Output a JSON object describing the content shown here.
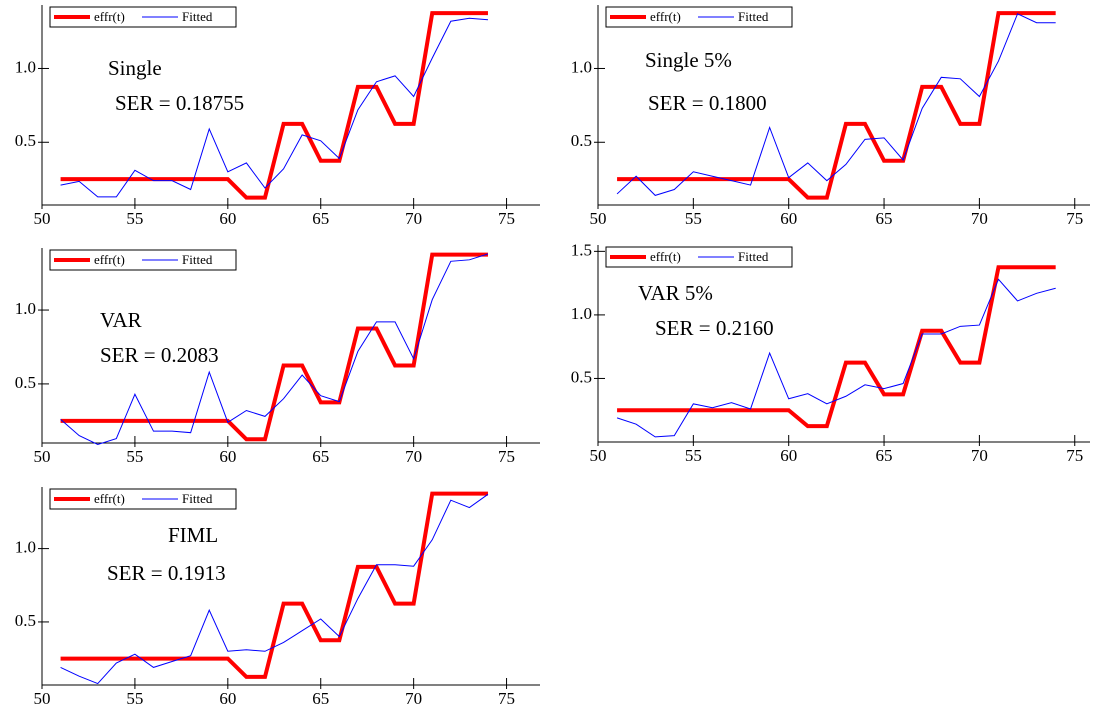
{
  "chart_data": [
    {
      "type": "line",
      "legend": "upper left",
      "annotations": [
        "Single",
        "SER = 0.18755"
      ],
      "x": [
        51,
        52,
        53,
        54,
        55,
        56,
        57,
        58,
        59,
        60,
        61,
        62,
        63,
        64,
        65,
        66,
        67,
        68,
        69,
        70,
        71,
        72,
        73,
        74
      ],
      "series": [
        {
          "name": "effr(t)",
          "color": "#ff0000",
          "values": [
            0.25,
            0.25,
            0.25,
            0.25,
            0.25,
            0.25,
            0.25,
            0.25,
            0.25,
            0.25,
            0.125,
            0.125,
            0.625,
            0.625,
            0.375,
            0.375,
            0.875,
            0.875,
            0.625,
            0.625,
            1.375,
            1.375,
            1.375,
            1.375
          ]
        },
        {
          "name": "Fitted",
          "color": "#0000ff",
          "values": [
            0.21,
            0.235,
            0.13,
            0.13,
            0.31,
            0.24,
            0.24,
            0.18,
            0.59,
            0.3,
            0.36,
            0.19,
            0.32,
            0.55,
            0.51,
            0.39,
            0.72,
            0.91,
            0.95,
            0.81,
            1.07,
            1.32,
            1.34,
            1.33
          ]
        }
      ],
      "xlim": [
        50,
        76.8
      ],
      "xticks": [
        50,
        55,
        60,
        65,
        70,
        75
      ],
      "ylim": [
        0.075,
        1.43
      ],
      "yticks": [
        0.5,
        {
          "value": 1,
          "label": "1.0"
        }
      ]
    },
    {
      "type": "line",
      "legend": "upper left",
      "annotations": [
        "Single 5%",
        "SER = 0.1800"
      ],
      "x": [
        51,
        52,
        53,
        54,
        55,
        56,
        57,
        58,
        59,
        60,
        61,
        62,
        63,
        64,
        65,
        66,
        67,
        68,
        69,
        70,
        71,
        72,
        73,
        74
      ],
      "series": [
        {
          "name": "effr(t)",
          "color": "#ff0000",
          "values": [
            0.25,
            0.25,
            0.25,
            0.25,
            0.25,
            0.25,
            0.25,
            0.25,
            0.25,
            0.25,
            0.125,
            0.125,
            0.625,
            0.625,
            0.375,
            0.375,
            0.875,
            0.875,
            0.625,
            0.625,
            1.375,
            1.375,
            1.375,
            1.375
          ]
        },
        {
          "name": "Fitted",
          "color": "#0000ff",
          "values": [
            0.15,
            0.27,
            0.14,
            0.18,
            0.3,
            0.27,
            0.24,
            0.21,
            0.6,
            0.26,
            0.36,
            0.24,
            0.35,
            0.52,
            0.53,
            0.38,
            0.73,
            0.94,
            0.93,
            0.81,
            1.05,
            1.37,
            1.31,
            1.31
          ]
        }
      ],
      "xlim": [
        50,
        75.8
      ],
      "xticks": [
        50,
        55,
        60,
        65,
        70,
        75
      ],
      "ylim": [
        0.075,
        1.43
      ],
      "yticks": [
        0.5,
        {
          "value": 1,
          "label": "1.0"
        }
      ]
    },
    {
      "type": "line",
      "legend": "upper left",
      "annotations": [
        "VAR",
        "SER = 0.2083"
      ],
      "x": [
        51,
        52,
        53,
        54,
        55,
        56,
        57,
        58,
        59,
        60,
        61,
        62,
        63,
        64,
        65,
        66,
        67,
        68,
        69,
        70,
        71,
        72,
        73,
        74
      ],
      "series": [
        {
          "name": "effr(t)",
          "color": "#ff0000",
          "values": [
            0.25,
            0.25,
            0.25,
            0.25,
            0.25,
            0.25,
            0.25,
            0.25,
            0.25,
            0.25,
            0.125,
            0.125,
            0.625,
            0.625,
            0.375,
            0.375,
            0.875,
            0.875,
            0.625,
            0.625,
            1.375,
            1.375,
            1.375,
            1.375
          ]
        },
        {
          "name": "Fitted",
          "color": "#0000ff",
          "values": [
            0.26,
            0.15,
            0.09,
            0.13,
            0.43,
            0.18,
            0.18,
            0.17,
            0.58,
            0.24,
            0.32,
            0.28,
            0.4,
            0.56,
            0.42,
            0.38,
            0.72,
            0.92,
            0.92,
            0.67,
            1.07,
            1.33,
            1.34,
            1.38
          ]
        }
      ],
      "xlim": [
        50,
        76.8
      ],
      "xticks": [
        50,
        55,
        60,
        65,
        70,
        75
      ],
      "ylim": [
        0.1,
        1.42
      ],
      "yticks": [
        0.5,
        {
          "value": 1,
          "label": "1.0"
        }
      ]
    },
    {
      "type": "line",
      "legend": "upper left",
      "annotations": [
        "VAR 5%",
        "SER = 0.2160"
      ],
      "x": [
        51,
        52,
        53,
        54,
        55,
        56,
        57,
        58,
        59,
        60,
        61,
        62,
        63,
        64,
        65,
        66,
        67,
        68,
        69,
        70,
        71,
        72,
        73,
        74
      ],
      "series": [
        {
          "name": "effr(t)",
          "color": "#ff0000",
          "values": [
            0.25,
            0.25,
            0.25,
            0.25,
            0.25,
            0.25,
            0.25,
            0.25,
            0.25,
            0.25,
            0.125,
            0.125,
            0.625,
            0.625,
            0.375,
            0.375,
            0.875,
            0.875,
            0.625,
            0.625,
            1.375,
            1.375,
            1.375,
            1.375
          ]
        },
        {
          "name": "Fitted",
          "color": "#0000ff",
          "values": [
            0.19,
            0.14,
            0.04,
            0.05,
            0.3,
            0.27,
            0.31,
            0.26,
            0.7,
            0.34,
            0.38,
            0.3,
            0.36,
            0.45,
            0.42,
            0.46,
            0.85,
            0.85,
            0.91,
            0.92,
            1.28,
            1.11,
            1.17,
            1.21
          ]
        }
      ],
      "xlim": [
        50,
        75.8
      ],
      "xticks": [
        50,
        55,
        60,
        65,
        70,
        75
      ],
      "ylim": [
        0,
        1.55
      ],
      "yticks": [
        0.5,
        {
          "value": 1,
          "label": "1.0"
        },
        1.5
      ]
    },
    {
      "type": "line",
      "legend": "upper left",
      "annotations": [
        "FIML",
        "SER = 0.1913"
      ],
      "x": [
        51,
        52,
        53,
        54,
        55,
        56,
        57,
        58,
        59,
        60,
        61,
        62,
        63,
        64,
        65,
        66,
        67,
        68,
        69,
        70,
        71,
        72,
        73,
        74
      ],
      "series": [
        {
          "name": "effr(t)",
          "color": "#ff0000",
          "values": [
            0.25,
            0.25,
            0.25,
            0.25,
            0.25,
            0.25,
            0.25,
            0.25,
            0.25,
            0.25,
            0.125,
            0.125,
            0.625,
            0.625,
            0.375,
            0.375,
            0.875,
            0.875,
            0.625,
            0.625,
            1.375,
            1.375,
            1.375,
            1.375
          ]
        },
        {
          "name": "Fitted",
          "color": "#0000ff",
          "values": [
            0.19,
            0.13,
            0.08,
            0.22,
            0.28,
            0.19,
            0.23,
            0.27,
            0.58,
            0.3,
            0.31,
            0.3,
            0.36,
            0.44,
            0.52,
            0.4,
            0.66,
            0.89,
            0.89,
            0.88,
            1.06,
            1.33,
            1.28,
            1.37
          ]
        }
      ],
      "xlim": [
        50,
        76.8
      ],
      "xticks": [
        50,
        55,
        60,
        65,
        70,
        75
      ],
      "ylim": [
        0.07,
        1.42
      ],
      "yticks": [
        0.5,
        {
          "value": 1,
          "label": "1.0"
        }
      ]
    }
  ]
}
